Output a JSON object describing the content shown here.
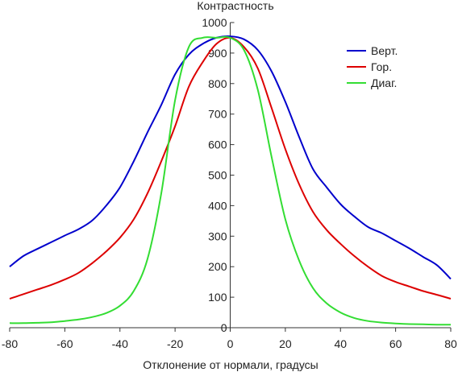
{
  "chart_data": {
    "type": "line",
    "title": "",
    "ylabel": "Контрастность",
    "xlabel": "Отклонение от нормали, градусы",
    "xlim": [
      -80,
      80
    ],
    "ylim": [
      0,
      1000
    ],
    "xticks": [
      -80,
      -60,
      -40,
      -20,
      0,
      20,
      40,
      60,
      80
    ],
    "yticks": [
      0,
      100,
      200,
      300,
      400,
      500,
      600,
      700,
      800,
      900,
      1000
    ],
    "grid": false,
    "legend_position": "top-right",
    "x": [
      -80,
      -75,
      -70,
      -65,
      -60,
      -55,
      -50,
      -45,
      -40,
      -35,
      -30,
      -25,
      -20,
      -15,
      -10,
      -5,
      0,
      5,
      10,
      15,
      20,
      25,
      30,
      35,
      40,
      45,
      50,
      55,
      60,
      65,
      70,
      75,
      80
    ],
    "series": [
      {
        "name": "Верт.",
        "color": "#0000cc",
        "values": [
          200,
          235,
          258,
          280,
          302,
          323,
          352,
          400,
          460,
          545,
          640,
          730,
          830,
          895,
          930,
          950,
          955,
          945,
          910,
          840,
          740,
          625,
          520,
          460,
          405,
          365,
          330,
          310,
          285,
          260,
          232,
          205,
          160
        ]
      },
      {
        "name": "Гор.",
        "color": "#dd0000",
        "values": [
          95,
          110,
          125,
          140,
          158,
          180,
          212,
          250,
          295,
          355,
          440,
          545,
          660,
          790,
          870,
          930,
          950,
          920,
          850,
          720,
          585,
          470,
          380,
          320,
          275,
          235,
          200,
          170,
          150,
          135,
          120,
          108,
          95
        ]
      },
      {
        "name": "Диаг.",
        "color": "#33dd33",
        "values": [
          15,
          15,
          16,
          18,
          22,
          27,
          35,
          48,
          72,
          120,
          225,
          440,
          745,
          920,
          950,
          950,
          950,
          910,
          780,
          560,
          355,
          220,
          130,
          80,
          50,
          32,
          22,
          17,
          14,
          12,
          11,
          10,
          10
        ]
      }
    ]
  }
}
